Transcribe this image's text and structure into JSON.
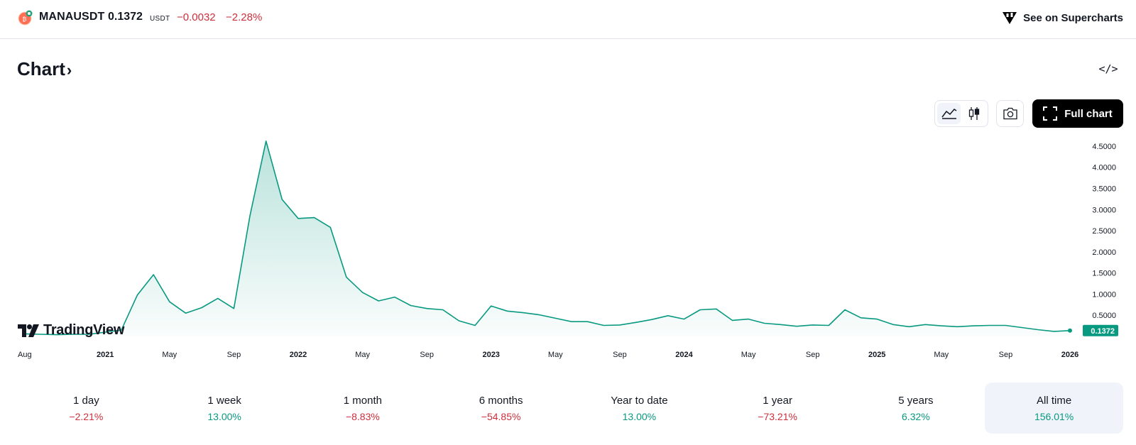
{
  "header": {
    "symbol": "MANAUSDT",
    "price": "0.1372",
    "currency": "USDT",
    "change": "−0.0032",
    "change_percent": "−2.28%",
    "supercharts_label": "See on Supercharts"
  },
  "chart_header": {
    "title": "Chart",
    "chevron": "›",
    "embed_label": "</>",
    "full_chart_label": "Full chart"
  },
  "brand": {
    "name": "TradingView"
  },
  "colors": {
    "line": "#089981",
    "negative": "#cc2f3c",
    "positive": "#089981"
  },
  "chart_data": {
    "type": "area",
    "x_start": "2020-08",
    "x_end": "2026-01",
    "x_ticks": [
      {
        "date": "2020-08",
        "label": "Aug",
        "bold": false
      },
      {
        "date": "2021-01",
        "label": "2021",
        "bold": true
      },
      {
        "date": "2021-05",
        "label": "May",
        "bold": false
      },
      {
        "date": "2021-09",
        "label": "Sep",
        "bold": false
      },
      {
        "date": "2022-01",
        "label": "2022",
        "bold": true
      },
      {
        "date": "2022-05",
        "label": "May",
        "bold": false
      },
      {
        "date": "2022-09",
        "label": "Sep",
        "bold": false
      },
      {
        "date": "2023-01",
        "label": "2023",
        "bold": true
      },
      {
        "date": "2023-05",
        "label": "May",
        "bold": false
      },
      {
        "date": "2023-09",
        "label": "Sep",
        "bold": false
      },
      {
        "date": "2024-01",
        "label": "2024",
        "bold": true
      },
      {
        "date": "2024-05",
        "label": "May",
        "bold": false
      },
      {
        "date": "2024-09",
        "label": "Sep",
        "bold": false
      },
      {
        "date": "2025-01",
        "label": "2025",
        "bold": true
      },
      {
        "date": "2025-05",
        "label": "May",
        "bold": false
      },
      {
        "date": "2025-09",
        "label": "Sep",
        "bold": false
      },
      {
        "date": "2026-01",
        "label": "2026",
        "bold": true
      }
    ],
    "y_ticks": [
      "0.5000",
      "1.0000",
      "1.5000",
      "2.0000",
      "2.5000",
      "3.0000",
      "3.5000",
      "4.0000",
      "4.5000"
    ],
    "ylim": [
      0,
      4.6
    ],
    "series": [
      {
        "points": [
          [
            "2020-08",
            0.06
          ],
          [
            "2020-09",
            0.05
          ],
          [
            "2020-10",
            0.04
          ],
          [
            "2020-11",
            0.05
          ],
          [
            "2020-12",
            0.05
          ],
          [
            "2021-01",
            0.1
          ],
          [
            "2021-02",
            0.15
          ],
          [
            "2021-03",
            0.98
          ],
          [
            "2021-04",
            1.46
          ],
          [
            "2021-05",
            0.82
          ],
          [
            "2021-06",
            0.55
          ],
          [
            "2021-07",
            0.68
          ],
          [
            "2021-08",
            0.9
          ],
          [
            "2021-09",
            0.66
          ],
          [
            "2021-10",
            2.85
          ],
          [
            "2021-11",
            4.62
          ],
          [
            "2021-12",
            3.24
          ],
          [
            "2022-01",
            2.79
          ],
          [
            "2022-02",
            2.81
          ],
          [
            "2022-03",
            2.58
          ],
          [
            "2022-04",
            1.4
          ],
          [
            "2022-05",
            1.04
          ],
          [
            "2022-06",
            0.84
          ],
          [
            "2022-07",
            0.93
          ],
          [
            "2022-08",
            0.73
          ],
          [
            "2022-09",
            0.66
          ],
          [
            "2022-10",
            0.63
          ],
          [
            "2022-11",
            0.37
          ],
          [
            "2022-12",
            0.26
          ],
          [
            "2023-01",
            0.72
          ],
          [
            "2023-02",
            0.6
          ],
          [
            "2023-03",
            0.56
          ],
          [
            "2023-04",
            0.51
          ],
          [
            "2023-05",
            0.43
          ],
          [
            "2023-06",
            0.35
          ],
          [
            "2023-07",
            0.35
          ],
          [
            "2023-08",
            0.26
          ],
          [
            "2023-09",
            0.27
          ],
          [
            "2023-10",
            0.33
          ],
          [
            "2023-11",
            0.4
          ],
          [
            "2023-12",
            0.49
          ],
          [
            "2024-01",
            0.41
          ],
          [
            "2024-02",
            0.63
          ],
          [
            "2024-03",
            0.65
          ],
          [
            "2024-04",
            0.38
          ],
          [
            "2024-05",
            0.41
          ],
          [
            "2024-06",
            0.31
          ],
          [
            "2024-07",
            0.28
          ],
          [
            "2024-08",
            0.24
          ],
          [
            "2024-09",
            0.27
          ],
          [
            "2024-10",
            0.26
          ],
          [
            "2024-11",
            0.63
          ],
          [
            "2024-12",
            0.44
          ],
          [
            "2025-01",
            0.41
          ],
          [
            "2025-02",
            0.28
          ],
          [
            "2025-03",
            0.23
          ],
          [
            "2025-04",
            0.28
          ],
          [
            "2025-05",
            0.25
          ],
          [
            "2025-06",
            0.23
          ],
          [
            "2025-07",
            0.25
          ],
          [
            "2025-08",
            0.26
          ],
          [
            "2025-09",
            0.26
          ],
          [
            "2025-10",
            0.21
          ],
          [
            "2025-11",
            0.16
          ],
          [
            "2025-12",
            0.12
          ],
          [
            "2026-01",
            0.137
          ]
        ]
      }
    ],
    "last_value_label": "0.1372"
  },
  "periods": [
    {
      "label": "1 day",
      "value": "−2.21%",
      "sign": "neg",
      "active": false
    },
    {
      "label": "1 week",
      "value": "13.00%",
      "sign": "pos",
      "active": false
    },
    {
      "label": "1 month",
      "value": "−8.83%",
      "sign": "neg",
      "active": false
    },
    {
      "label": "6 months",
      "value": "−54.85%",
      "sign": "neg",
      "active": false
    },
    {
      "label": "Year to date",
      "value": "13.00%",
      "sign": "pos",
      "active": false
    },
    {
      "label": "1 year",
      "value": "−73.21%",
      "sign": "neg",
      "active": false
    },
    {
      "label": "5 years",
      "value": "6.32%",
      "sign": "pos",
      "active": false
    },
    {
      "label": "All time",
      "value": "156.01%",
      "sign": "pos",
      "active": true
    }
  ]
}
